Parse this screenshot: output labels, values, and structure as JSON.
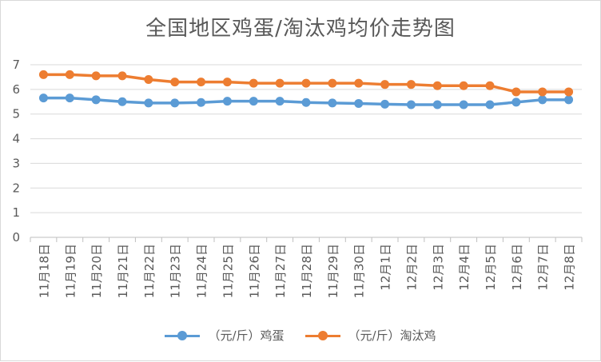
{
  "chart_data": {
    "type": "line",
    "title": "全国地区鸡蛋/淘汰鸡均价走势图",
    "xlabel": "",
    "ylabel": "",
    "ylim": [
      0,
      7
    ],
    "yticks": [
      "0",
      "1",
      "2",
      "3",
      "4",
      "5",
      "6",
      "7"
    ],
    "grid": true,
    "legend_position": "bottom",
    "categories": [
      "11月18日",
      "11月19日",
      "11月20日",
      "11月21日",
      "11月22日",
      "11月23日",
      "11月24日",
      "11月25日",
      "11月26日",
      "11月27日",
      "11月28日",
      "11月29日",
      "11月30日",
      "12月1日",
      "12月2日",
      "12月3日",
      "12月4日",
      "12月5日",
      "12月6日",
      "12月7日",
      "12月8日"
    ],
    "series": [
      {
        "name": "（元/斤）鸡蛋",
        "color": "#5b9bd5",
        "values": [
          5.65,
          5.65,
          5.58,
          5.5,
          5.45,
          5.45,
          5.47,
          5.52,
          5.52,
          5.52,
          5.47,
          5.45,
          5.43,
          5.4,
          5.38,
          5.38,
          5.38,
          5.38,
          5.48,
          5.58,
          5.58
        ]
      },
      {
        "name": "（元/斤）淘汰鸡",
        "color": "#ed7d31",
        "values": [
          6.6,
          6.6,
          6.55,
          6.55,
          6.4,
          6.3,
          6.3,
          6.3,
          6.25,
          6.25,
          6.25,
          6.25,
          6.25,
          6.2,
          6.2,
          6.15,
          6.15,
          6.15,
          5.9,
          5.9,
          5.9
        ]
      }
    ]
  }
}
